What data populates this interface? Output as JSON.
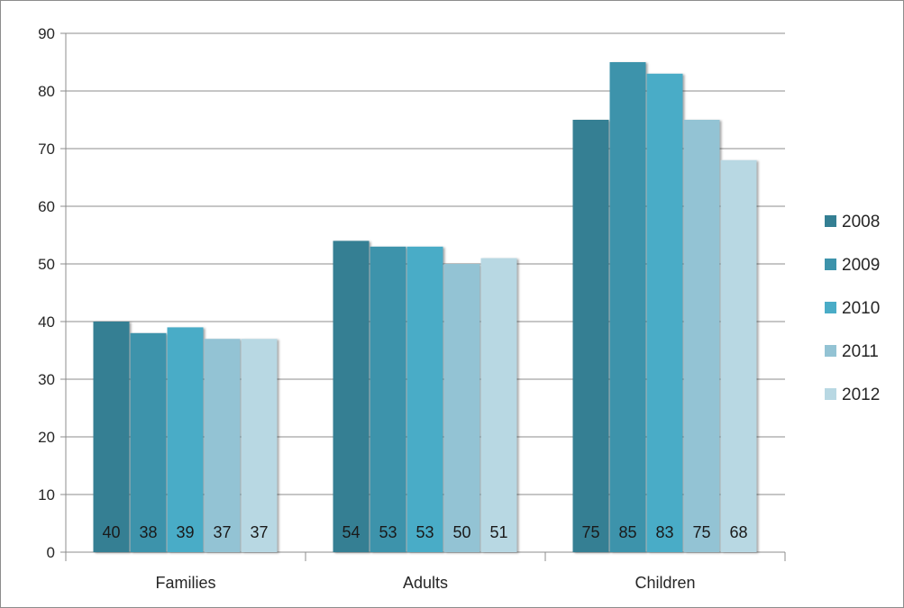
{
  "chart_data": {
    "type": "bar",
    "categories": [
      "Families",
      "Adults",
      "Children"
    ],
    "series": [
      {
        "name": "2008",
        "values": [
          40,
          54,
          75
        ],
        "color": "#347f93"
      },
      {
        "name": "2009",
        "values": [
          38,
          53,
          85
        ],
        "color": "#3d93ab"
      },
      {
        "name": "2010",
        "values": [
          39,
          53,
          83
        ],
        "color": "#4aacc7"
      },
      {
        "name": "2011",
        "values": [
          37,
          50,
          75
        ],
        "color": "#93c3d4"
      },
      {
        "name": "2012",
        "values": [
          37,
          51,
          68
        ],
        "color": "#b8d8e3"
      }
    ],
    "ylim": [
      0,
      90
    ],
    "yticks": [
      "0",
      "10",
      "20",
      "30",
      "40",
      "50",
      "60",
      "70",
      "80",
      "90"
    ],
    "grid": true,
    "legend": "right",
    "data_labels": true
  }
}
